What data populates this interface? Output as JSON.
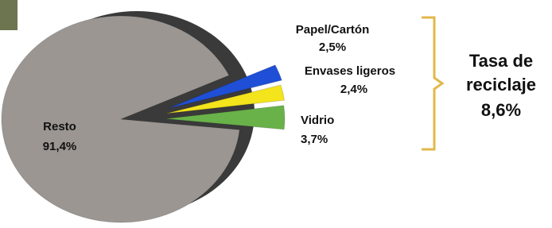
{
  "chart_data": {
    "type": "pie",
    "categories": [
      "Resto",
      "Papel/Cartón",
      "Envases ligeros",
      "Vidrio"
    ],
    "values": [
      91.4,
      2.5,
      2.4,
      3.7
    ],
    "value_labels": [
      "91,4%",
      "2,5%",
      "2,4%",
      "3,7%"
    ],
    "colors": [
      "#9b9692",
      "#1f4fd6",
      "#f3e41c",
      "#69b24a"
    ],
    "annotation": [
      "Tasa de",
      "reciclaje",
      "8,6%"
    ]
  }
}
